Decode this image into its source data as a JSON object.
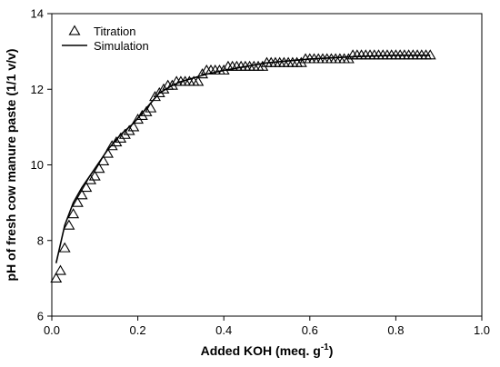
{
  "chart_data": {
    "type": "scatter",
    "title": "",
    "xlabel": "Added KOH (meq. g",
    "xlabel_sup": "-1",
    "xlabel_tail": ")",
    "ylabel": "pH of fresh cow manure paste (1/1 v/v)",
    "xlim": [
      0.0,
      1.0
    ],
    "ylim": [
      6,
      14
    ],
    "x_ticks": [
      0.0,
      0.2,
      0.4,
      0.6,
      0.8,
      1.0
    ],
    "x_tick_labels": [
      "0.0",
      "0.2",
      "0.4",
      "0.6",
      "0.8",
      "1.0"
    ],
    "y_ticks": [
      6,
      8,
      10,
      12,
      14
    ],
    "y_tick_labels": [
      "6",
      "8",
      "10",
      "12",
      "14"
    ],
    "grid": false,
    "legend_placement": "top-left",
    "series": [
      {
        "name": "Titration",
        "marker": "open-triangle",
        "color": "#000000",
        "x": [
          0.01,
          0.02,
          0.03,
          0.04,
          0.05,
          0.06,
          0.07,
          0.08,
          0.09,
          0.1,
          0.11,
          0.12,
          0.13,
          0.14,
          0.15,
          0.16,
          0.17,
          0.18,
          0.19,
          0.2,
          0.21,
          0.22,
          0.23,
          0.24,
          0.25,
          0.26,
          0.27,
          0.28,
          0.29,
          0.3,
          0.31,
          0.32,
          0.33,
          0.34,
          0.35,
          0.36,
          0.37,
          0.38,
          0.39,
          0.4,
          0.41,
          0.42,
          0.43,
          0.44,
          0.45,
          0.46,
          0.47,
          0.48,
          0.49,
          0.5,
          0.51,
          0.52,
          0.53,
          0.54,
          0.55,
          0.56,
          0.57,
          0.58,
          0.59,
          0.6,
          0.61,
          0.62,
          0.63,
          0.64,
          0.65,
          0.66,
          0.67,
          0.68,
          0.69,
          0.7,
          0.71,
          0.72,
          0.73,
          0.74,
          0.75,
          0.76,
          0.77,
          0.78,
          0.79,
          0.8,
          0.81,
          0.82,
          0.83,
          0.84,
          0.85,
          0.86,
          0.87,
          0.88
        ],
        "y": [
          7.0,
          7.2,
          7.8,
          8.4,
          8.7,
          9.0,
          9.2,
          9.4,
          9.6,
          9.7,
          9.9,
          10.1,
          10.3,
          10.5,
          10.6,
          10.7,
          10.8,
          10.9,
          11.0,
          11.2,
          11.3,
          11.4,
          11.5,
          11.8,
          11.9,
          12.0,
          12.1,
          12.1,
          12.2,
          12.2,
          12.2,
          12.2,
          12.2,
          12.2,
          12.4,
          12.5,
          12.5,
          12.5,
          12.5,
          12.5,
          12.6,
          12.6,
          12.6,
          12.6,
          12.6,
          12.6,
          12.6,
          12.6,
          12.6,
          12.7,
          12.7,
          12.7,
          12.7,
          12.7,
          12.7,
          12.7,
          12.7,
          12.7,
          12.8,
          12.8,
          12.8,
          12.8,
          12.8,
          12.8,
          12.8,
          12.8,
          12.8,
          12.8,
          12.8,
          12.9,
          12.9,
          12.9,
          12.9,
          12.9,
          12.9,
          12.9,
          12.9,
          12.9,
          12.9,
          12.9,
          12.9,
          12.9,
          12.9,
          12.9,
          12.9,
          12.9,
          12.9,
          12.9
        ]
      },
      {
        "name": "Simulation",
        "type": "line",
        "color": "#000000",
        "x": [
          0.01,
          0.02,
          0.03,
          0.05,
          0.07,
          0.1,
          0.13,
          0.16,
          0.19,
          0.22,
          0.25,
          0.28,
          0.3,
          0.33,
          0.36,
          0.4,
          0.45,
          0.5,
          0.55,
          0.6,
          0.65,
          0.7,
          0.75,
          0.8,
          0.85,
          0.88
        ],
        "y": [
          7.4,
          7.9,
          8.4,
          9.0,
          9.4,
          9.9,
          10.4,
          10.8,
          11.1,
          11.5,
          11.9,
          12.1,
          12.2,
          12.3,
          12.4,
          12.5,
          12.6,
          12.7,
          12.75,
          12.8,
          12.83,
          12.86,
          12.88,
          12.9,
          12.9,
          12.9
        ]
      }
    ]
  }
}
